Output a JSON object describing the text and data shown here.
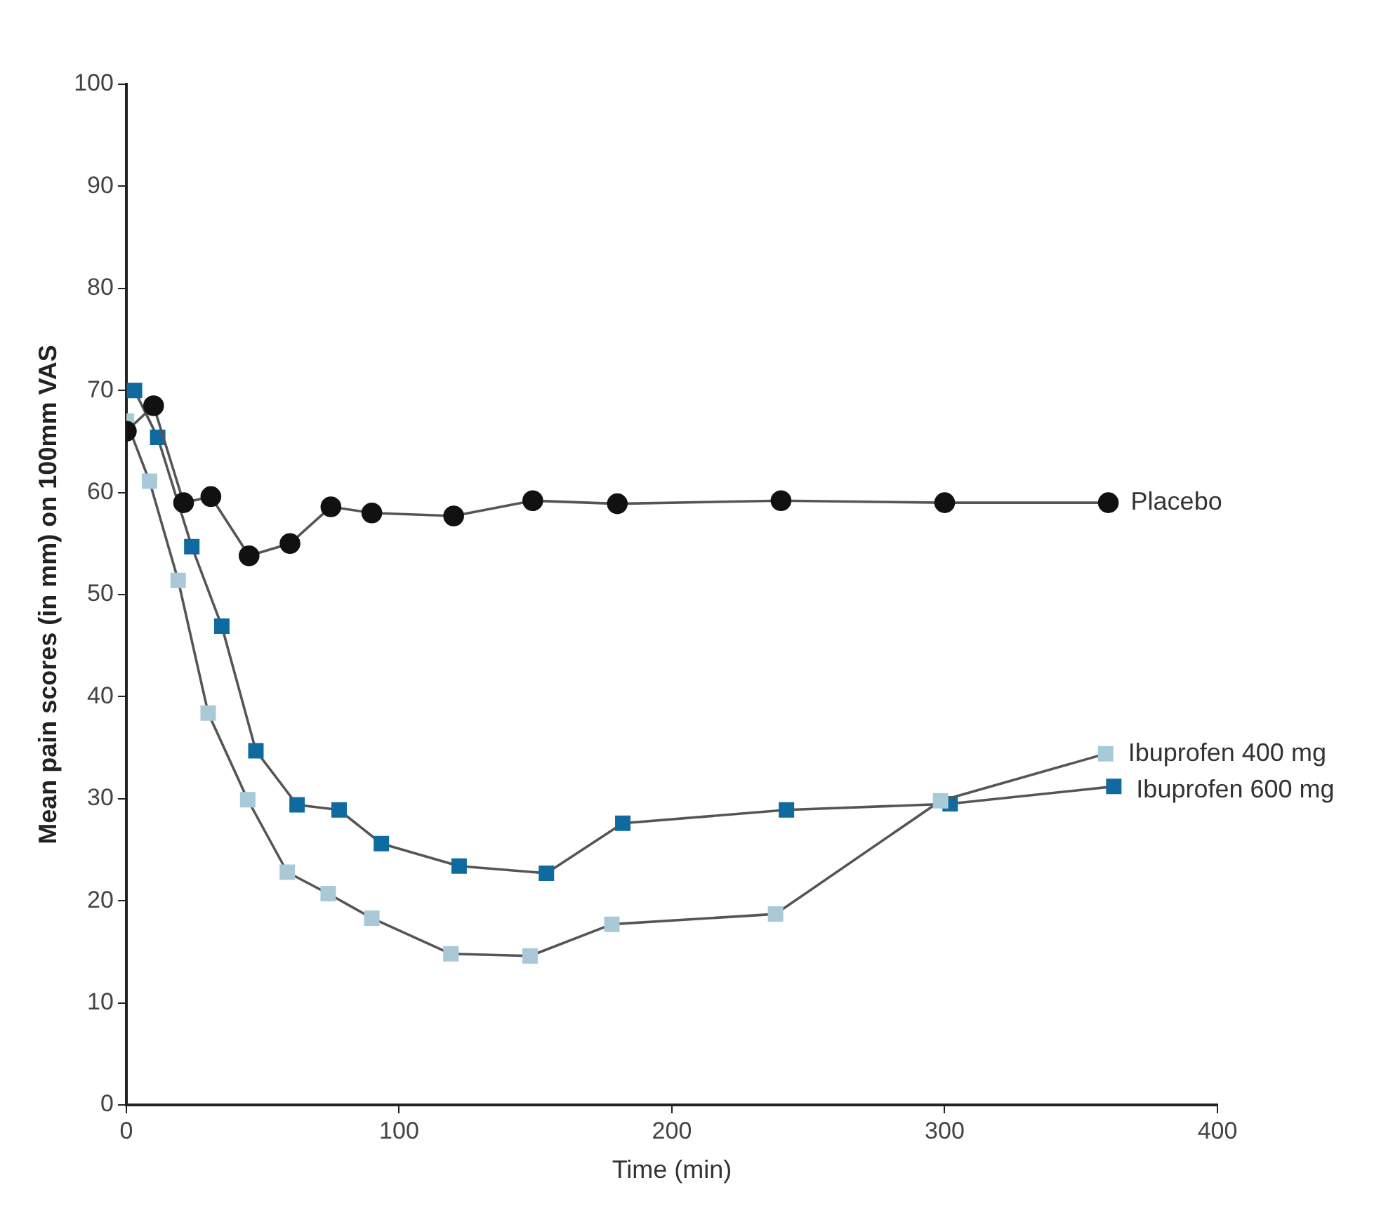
{
  "chart_data": {
    "type": "line",
    "xlabel": "Time (min)",
    "ylabel": "Mean pain scores (in mm) on 100mm VAS",
    "xlim": [
      0,
      400
    ],
    "xticks": [
      0,
      100,
      200,
      300,
      400
    ],
    "ylim": [
      0,
      100
    ],
    "yticks": [
      0,
      10,
      20,
      30,
      40,
      50,
      60,
      70,
      80,
      90,
      100
    ],
    "grid": false,
    "legend": false,
    "line_style": "solid",
    "series": [
      {
        "name": "Placebo",
        "color": "#111111",
        "marker": "circle",
        "x": [
          0,
          10,
          21,
          31,
          45,
          60,
          75,
          90,
          120,
          149,
          180,
          240,
          300,
          360
        ],
        "values": [
          66,
          68.5,
          59,
          59.6,
          53.8,
          55,
          58.6,
          58,
          57.7,
          59.2,
          58.9,
          59.2,
          59,
          59
        ]
      },
      {
        "name": "Ibuprofen 400 mg",
        "color": "#a9c9d9",
        "marker": "square",
        "x": [
          0,
          8.5,
          19,
          30,
          44.5,
          59,
          74,
          90,
          119,
          148,
          178,
          238,
          298.5,
          359
        ],
        "values": [
          67,
          61.1,
          51.4,
          38.4,
          29.9,
          22.8,
          20.7,
          18.3,
          14.8,
          14.6,
          17.7,
          18.7,
          29.8,
          34.4
        ]
      },
      {
        "name": "Ibuprofen 600 mg",
        "color": "#0f6aa0",
        "marker": "square",
        "x": [
          3,
          11.5,
          24,
          35,
          47.5,
          62.6,
          78,
          93.5,
          122,
          154,
          182,
          242,
          302,
          362
        ],
        "values": [
          70,
          65.4,
          54.7,
          46.9,
          34.7,
          29.4,
          28.9,
          25.6,
          23.4,
          22.7,
          27.6,
          28.9,
          29.5,
          31.2
        ]
      }
    ]
  }
}
